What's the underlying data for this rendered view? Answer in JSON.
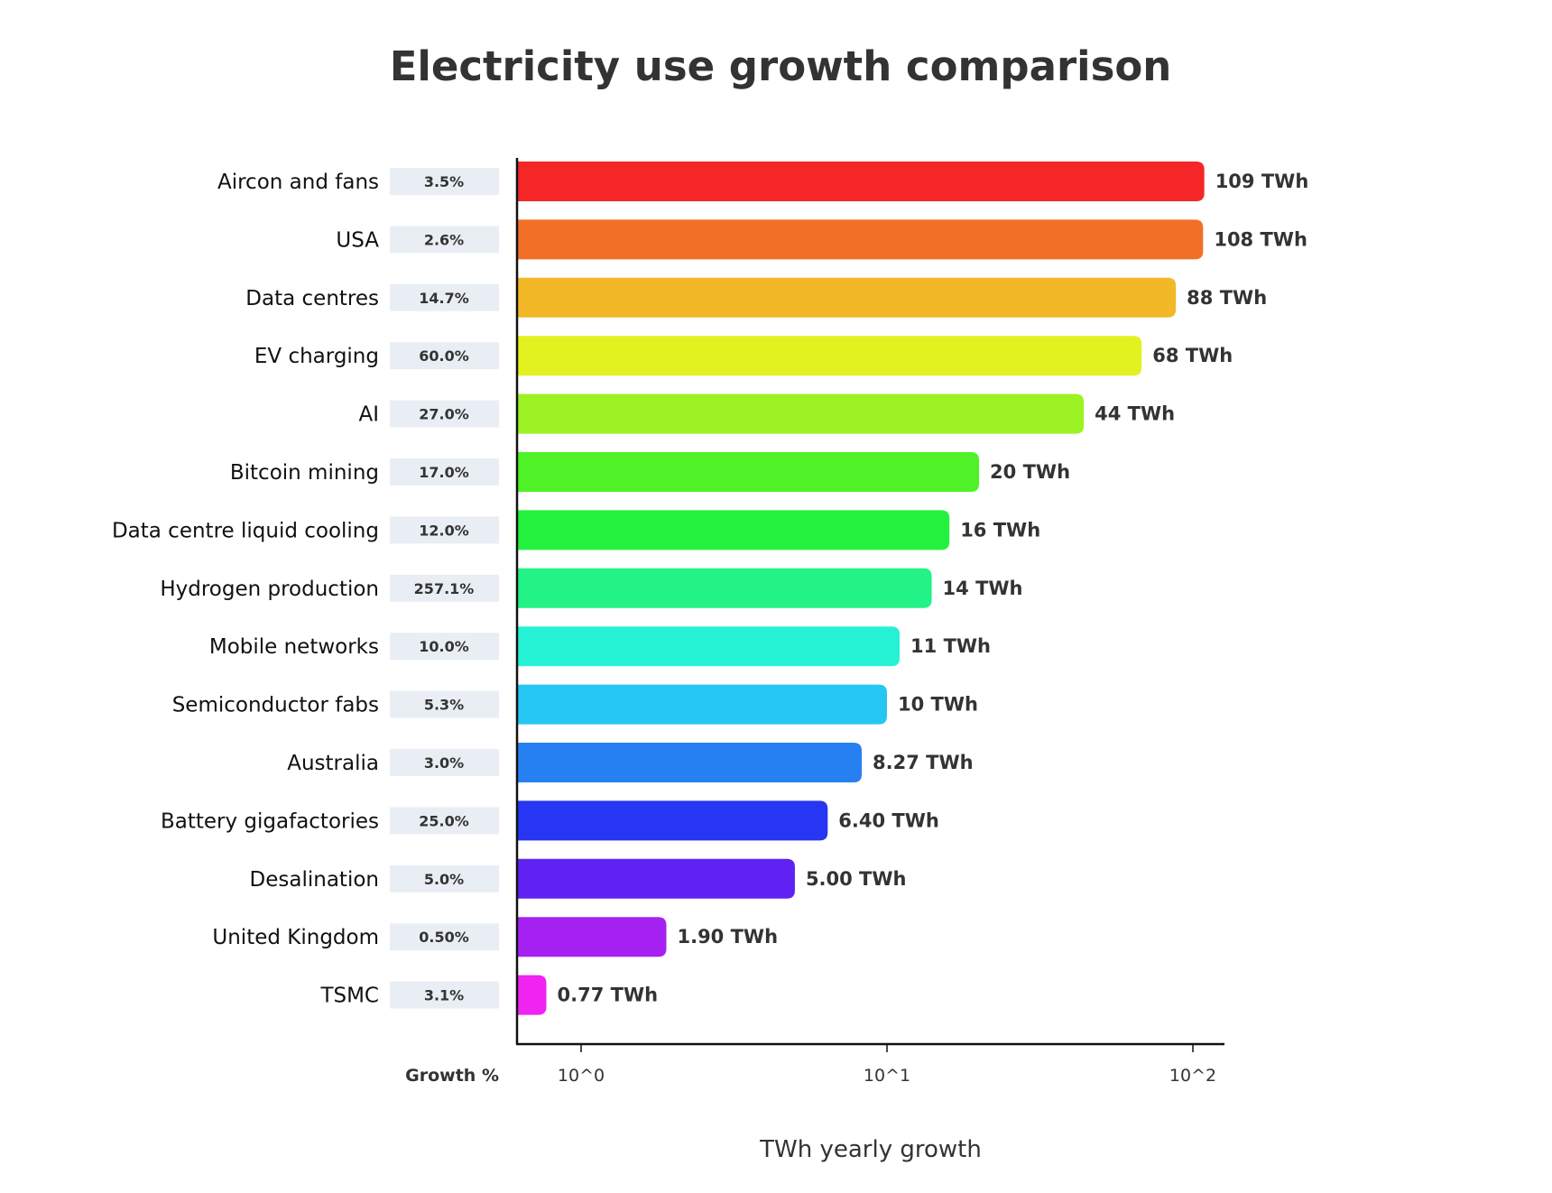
{
  "chart_data": {
    "type": "bar",
    "orientation": "horizontal",
    "title": "Electricity use growth comparison",
    "xlabel": "TWh yearly growth",
    "ylabel": "",
    "x_scale": "log",
    "xlim": [
      0.62,
      127
    ],
    "x_ticks": [
      1,
      10,
      100
    ],
    "x_tick_labels": [
      "10^0",
      "10^1",
      "10^2"
    ],
    "grid": false,
    "growth_column_header": "Growth %",
    "categories": [
      "Aircon and fans",
      "USA",
      "Data centres",
      "EV charging",
      "AI",
      "Bitcoin mining",
      "Data centre liquid cooling",
      "Hydrogen production",
      "Mobile networks",
      "Semiconductor fabs",
      "Australia",
      "Battery gigafactories",
      "Desalination",
      "United Kingdom",
      "TSMC"
    ],
    "values": [
      109,
      108,
      88,
      68,
      44,
      20,
      16,
      14,
      11,
      10,
      8.27,
      6.4,
      5.0,
      1.9,
      0.77
    ],
    "value_labels": [
      "109 TWh",
      "108 TWh",
      "88 TWh",
      "68 TWh",
      "44 TWh",
      "20 TWh",
      "16 TWh",
      "14 TWh",
      "11 TWh",
      "10 TWh",
      "8.27 TWh",
      "6.40 TWh",
      "5.00 TWh",
      "1.90 TWh",
      "0.77 TWh"
    ],
    "growth_labels": [
      "3.5%",
      "2.6%",
      "14.7%",
      "60.0%",
      "27.0%",
      "17.0%",
      "12.0%",
      "257.1%",
      "10.0%",
      "5.3%",
      "3.0%",
      "25.0%",
      "5.0%",
      "0.50%",
      "3.1%"
    ],
    "colors": [
      "#f42628",
      "#f17027",
      "#f2b827",
      "#e2f220",
      "#9cf223",
      "#4ff226",
      "#22f23d",
      "#23f287",
      "#25f2d4",
      "#25c6f2",
      "#2680f2",
      "#2636f2",
      "#5f22f2",
      "#a522f2",
      "#ef24f2"
    ]
  }
}
